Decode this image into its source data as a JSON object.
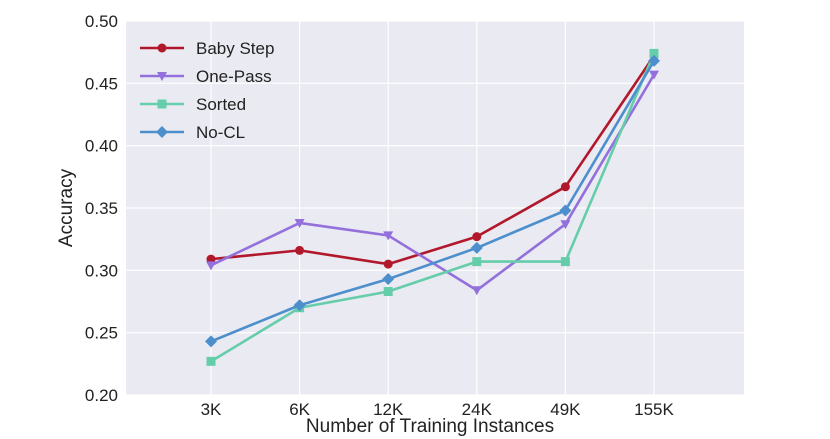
{
  "chart_data": {
    "type": "line",
    "title": "",
    "xlabel": "Number of Training Instances",
    "ylabel": "Accuracy",
    "categories": [
      "3K",
      "6K",
      "12K",
      "24K",
      "49K",
      "155K"
    ],
    "ylim": [
      0.2,
      0.5
    ],
    "yticks": [
      0.2,
      0.25,
      0.3,
      0.35,
      0.4,
      0.45,
      0.5
    ],
    "ytick_labels": [
      "0.20",
      "0.25",
      "0.30",
      "0.35",
      "0.40",
      "0.45",
      "0.50"
    ],
    "grid": true,
    "background": "#EAEAF2",
    "legend_position": "top-left",
    "series": [
      {
        "name": "Baby Step",
        "color": "#B2182B",
        "marker": "circle",
        "values": [
          0.309,
          0.316,
          0.305,
          0.327,
          0.367,
          0.472
        ]
      },
      {
        "name": "One-Pass",
        "color": "#9370DB",
        "marker": "triangle-down",
        "values": [
          0.304,
          0.338,
          0.328,
          0.284,
          0.337,
          0.457
        ]
      },
      {
        "name": "Sorted",
        "color": "#66CDAA",
        "marker": "square",
        "values": [
          0.227,
          0.27,
          0.283,
          0.307,
          0.307,
          0.474
        ]
      },
      {
        "name": "No-CL",
        "color": "#4C8FCC",
        "marker": "diamond",
        "values": [
          0.243,
          0.272,
          0.293,
          0.318,
          0.348,
          0.468
        ]
      }
    ]
  }
}
